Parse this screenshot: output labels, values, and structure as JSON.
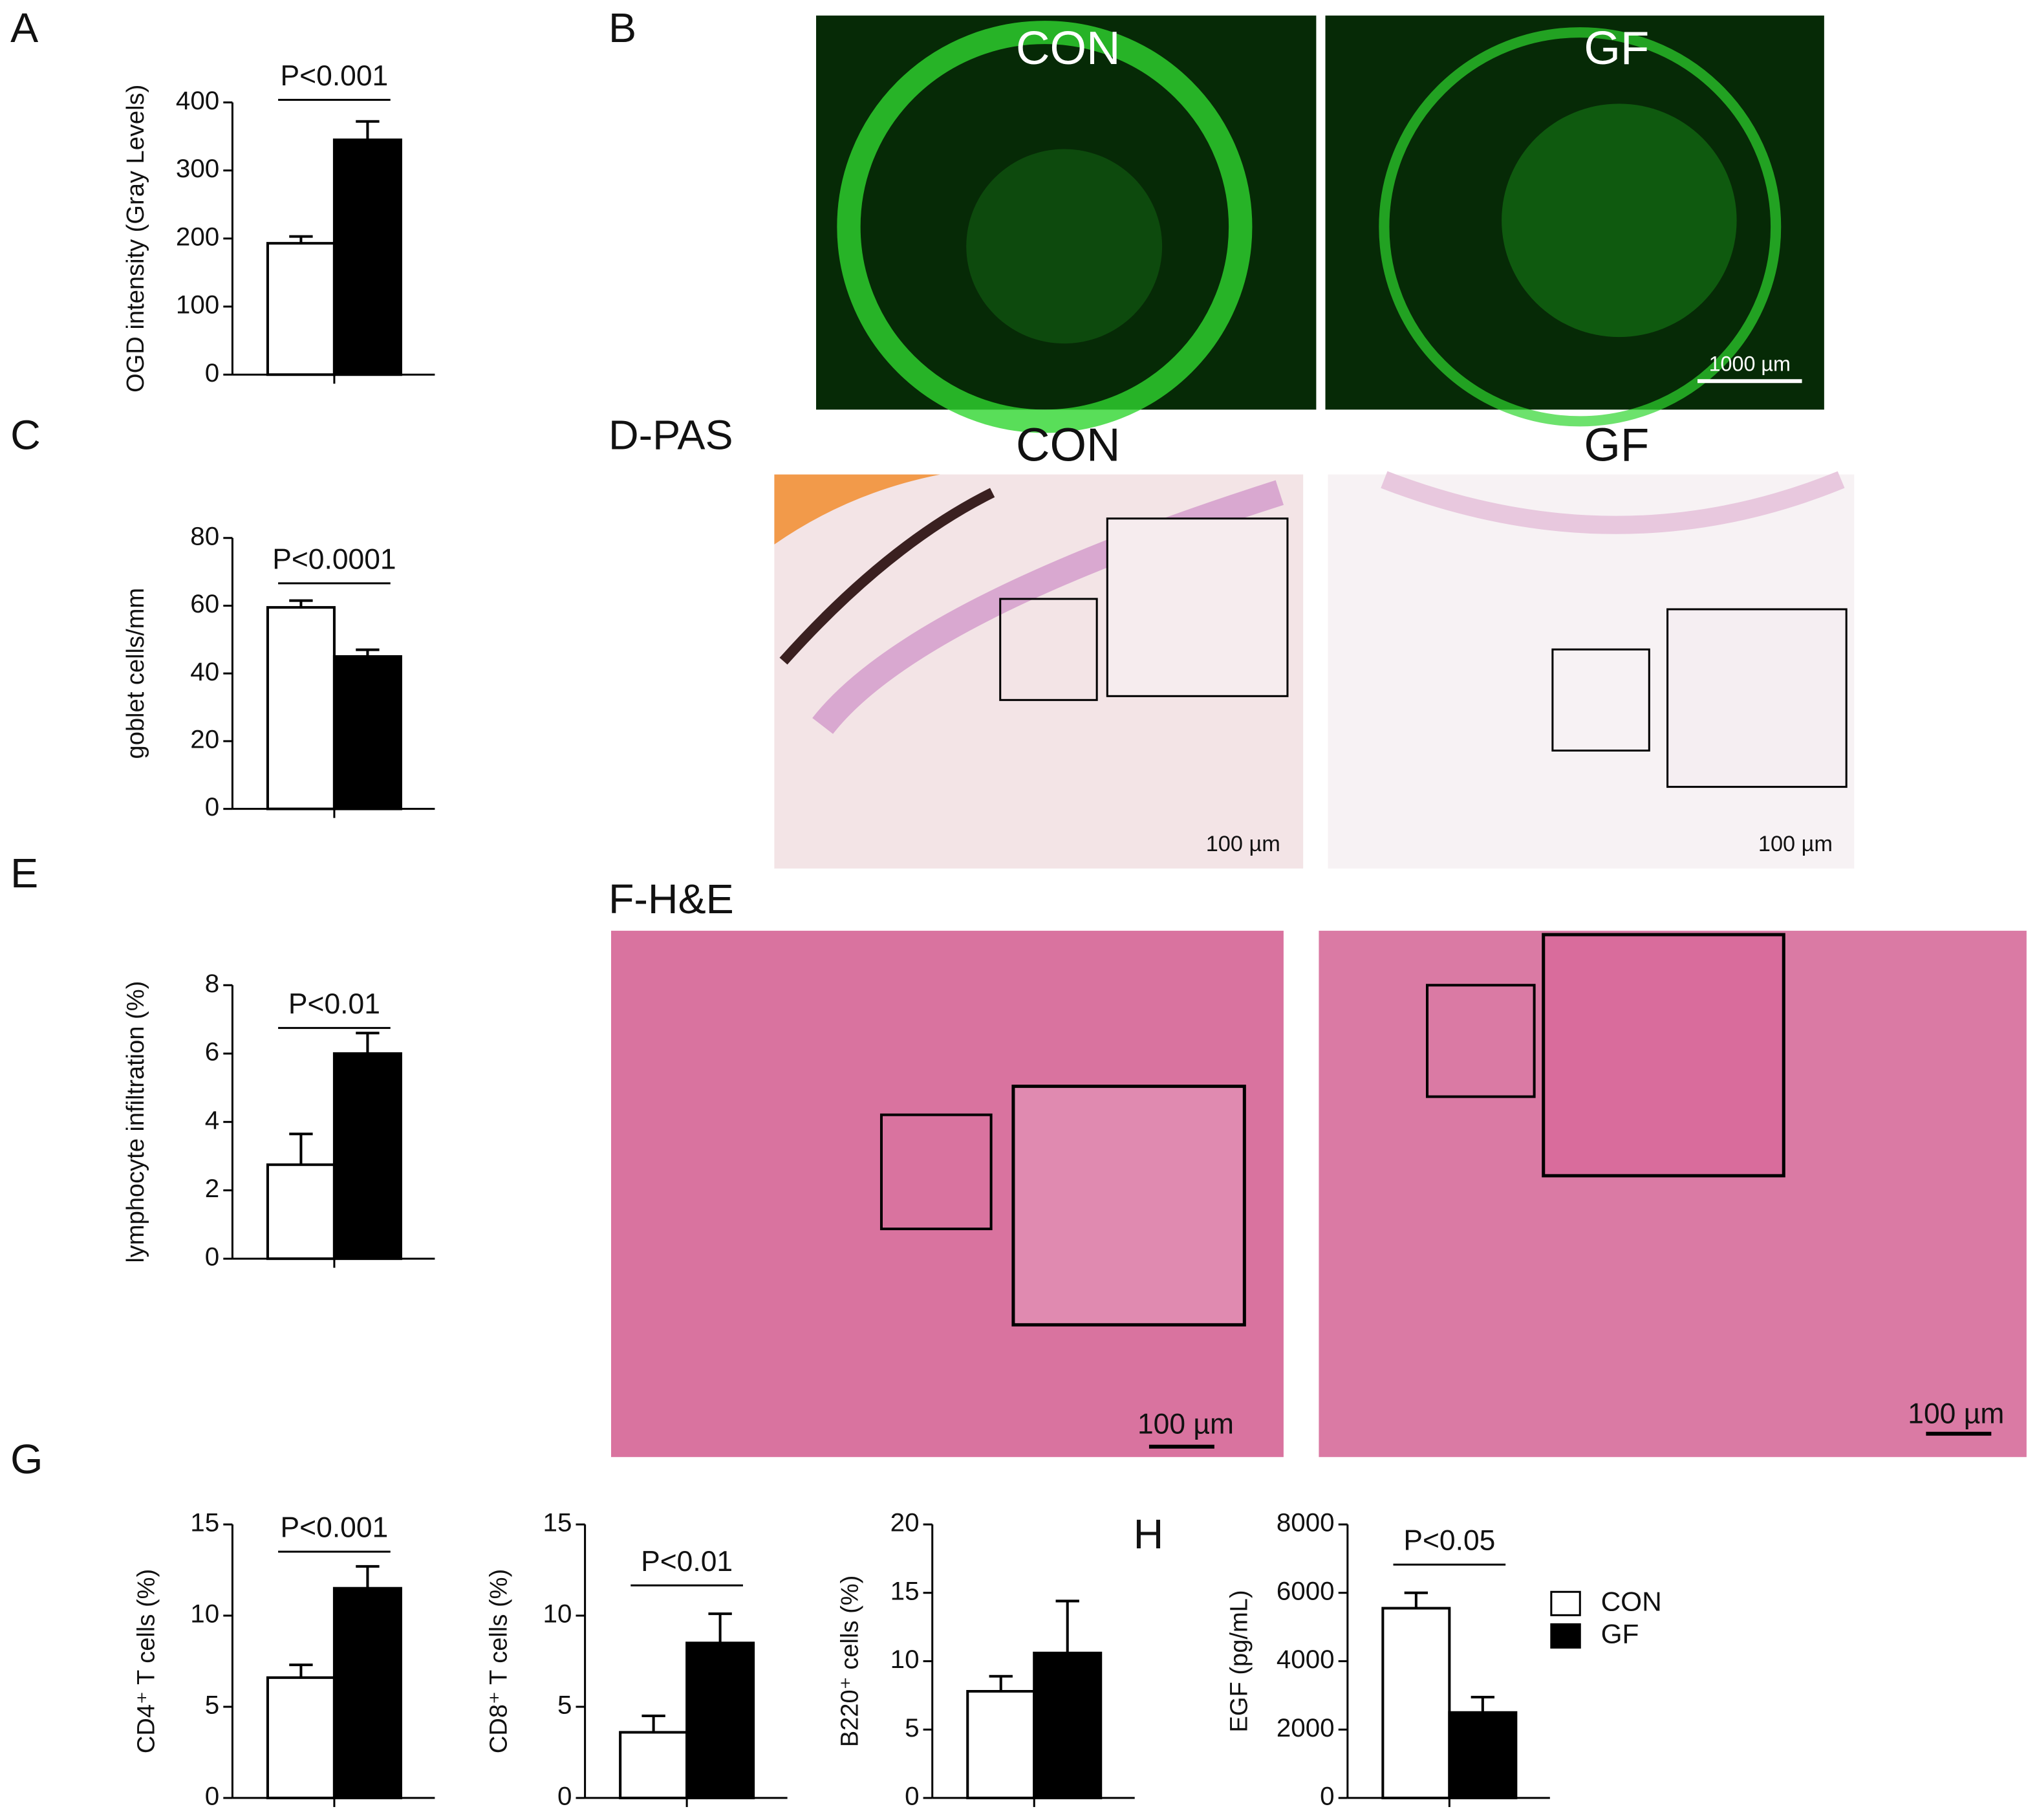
{
  "panel_letters": [
    "A",
    "B",
    "C",
    "D-PAS",
    "E",
    "F-H&E",
    "G",
    "H"
  ],
  "images": {
    "b": {
      "left": "CON",
      "right": "GF",
      "scale": "1000 µm"
    },
    "d": {
      "left": "CON",
      "right": "GF",
      "scale_left": "100 µm",
      "scale_right": "100 µm"
    },
    "f": {
      "scale_left": "100 µm",
      "scale_right": "100 µm"
    }
  },
  "chart_data": [
    {
      "type": "bar",
      "y_label": "OGD  intensity (Gray Levels)",
      "annotation": "P<0.001",
      "ylim": [
        0,
        400
      ],
      "yticks": [
        0,
        100,
        200,
        300,
        400
      ],
      "legend": false,
      "series": [
        {
          "name": "CON",
          "color": "#ffffff",
          "values": [
            193
          ],
          "errors": [
            10
          ]
        },
        {
          "name": "GF",
          "color": "#000000",
          "values": [
            345
          ],
          "errors": [
            27
          ]
        }
      ]
    },
    {
      "type": "bar",
      "y_label": "goblet cells/mm",
      "annotation": "P<0.0001",
      "ylim": [
        0,
        80
      ],
      "yticks": [
        0,
        20,
        40,
        60,
        80
      ],
      "legend": false,
      "series": [
        {
          "name": "CON",
          "color": "#ffffff",
          "values": [
            59.5
          ],
          "errors": [
            2
          ]
        },
        {
          "name": "GF",
          "color": "#000000",
          "values": [
            45
          ],
          "errors": [
            2
          ]
        }
      ]
    },
    {
      "type": "bar",
      "y_label": "lymphocyte infiltration (%)",
      "annotation": "P<0.01",
      "ylim": [
        0,
        8
      ],
      "yticks": [
        0,
        2,
        4,
        6,
        8
      ],
      "legend": false,
      "series": [
        {
          "name": "CON",
          "color": "#ffffff",
          "values": [
            2.75
          ],
          "errors": [
            0.9
          ]
        },
        {
          "name": "GF",
          "color": "#000000",
          "values": [
            6.0
          ],
          "errors": [
            0.6
          ]
        }
      ]
    },
    {
      "type": "bar",
      "y_label": "CD4⁺ T cells (%)",
      "annotation": "P<0.001",
      "ylim": [
        0,
        15
      ],
      "yticks": [
        0,
        5,
        10,
        15
      ],
      "legend": false,
      "series": [
        {
          "name": "CON",
          "color": "#ffffff",
          "values": [
            6.6
          ],
          "errors": [
            0.7
          ]
        },
        {
          "name": "GF",
          "color": "#000000",
          "values": [
            11.5
          ],
          "errors": [
            1.2
          ]
        }
      ]
    },
    {
      "type": "bar",
      "y_label": "CD8⁺ T cells (%)",
      "annotation": "P<0.01",
      "ylim": [
        0,
        15
      ],
      "yticks": [
        0,
        5,
        10,
        15
      ],
      "legend": false,
      "series": [
        {
          "name": "CON",
          "color": "#ffffff",
          "values": [
            3.6
          ],
          "errors": [
            0.9
          ]
        },
        {
          "name": "GF",
          "color": "#000000",
          "values": [
            8.5
          ],
          "errors": [
            1.6
          ]
        }
      ]
    },
    {
      "type": "bar",
      "y_label": "B220⁺ cells (%)",
      "ylim": [
        0,
        20
      ],
      "yticks": [
        0,
        5,
        10,
        15,
        20
      ],
      "legend": false,
      "series": [
        {
          "name": "CON",
          "color": "#ffffff",
          "values": [
            7.8
          ],
          "errors": [
            1.1
          ]
        },
        {
          "name": "GF",
          "color": "#000000",
          "values": [
            10.6
          ],
          "errors": [
            3.8
          ]
        }
      ]
    },
    {
      "type": "bar",
      "y_label": "EGF  (pg/mL)",
      "annotation": "P<0.05",
      "ylim": [
        0,
        8000
      ],
      "yticks": [
        0,
        2000,
        4000,
        6000,
        8000
      ],
      "legend": true,
      "series": [
        {
          "name": "CON",
          "color": "#ffffff",
          "values": [
            5550
          ],
          "errors": [
            450
          ]
        },
        {
          "name": "GF",
          "color": "#000000",
          "values": [
            2500
          ],
          "errors": [
            450
          ]
        }
      ]
    }
  ]
}
